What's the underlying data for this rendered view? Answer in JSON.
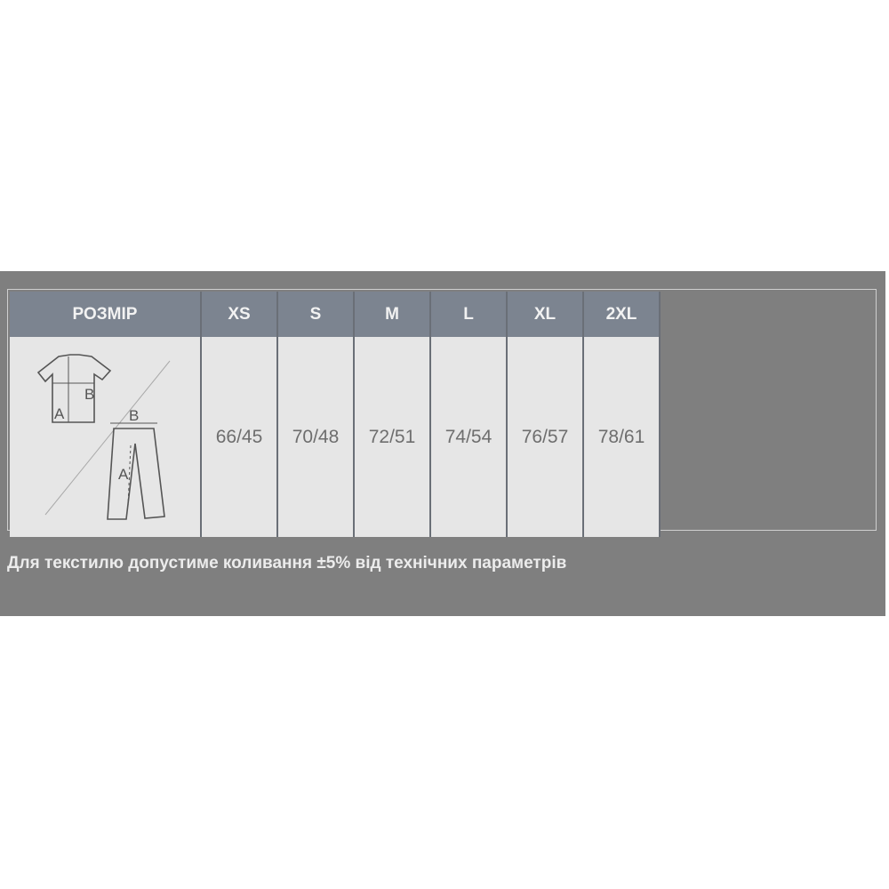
{
  "table": {
    "header_label": "РОЗМІР",
    "sizes": [
      "XS",
      "S",
      "M",
      "L",
      "XL",
      "2XL"
    ],
    "values": [
      "66/45",
      "70/48",
      "72/51",
      "74/54",
      "76/57",
      "78/61"
    ],
    "diagram_labels": {
      "shirt_a": "A",
      "shirt_b": "B",
      "pants_a": "A",
      "pants_b": "B"
    }
  },
  "note": "Для текстилю допустиме коливання ±5% від технічних параметрів",
  "colors": {
    "panel": "#7f7f7f",
    "header": "#7c8490",
    "cell": "#e6e6e6"
  }
}
